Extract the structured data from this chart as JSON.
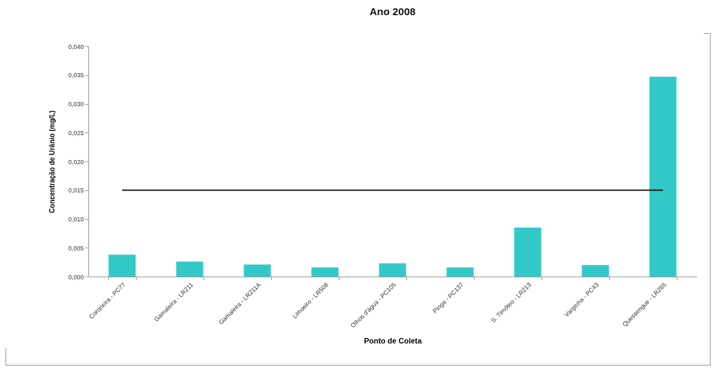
{
  "chart_data": {
    "type": "bar",
    "title": "Ano 2008",
    "xlabel": "Ponto de Coleta",
    "ylabel": "Concentração de Urânio (mg/L)",
    "categories": [
      "Coroneira - PC77",
      "Gamaleira - LR211",
      "Gamaleira - LR211A",
      "Limoeiro - LR508",
      "Olhos d'água - PC105",
      "Pinga - PC137",
      "S. Timóteo - LR213",
      "Varginha - PC43",
      "Quessengue - LR265"
    ],
    "values": [
      0.0038,
      0.0026,
      0.0021,
      0.0016,
      0.0023,
      0.0016,
      0.0085,
      0.002,
      0.0347
    ],
    "color": "#33c9c9",
    "ylim": [
      0,
      0.04
    ],
    "yticks": [
      {
        "value": 0,
        "label": "0,000"
      },
      {
        "value": 0.005,
        "label": "0,005"
      },
      {
        "value": 0.01,
        "label": "0,010"
      },
      {
        "value": 0.015,
        "label": "0,015"
      },
      {
        "value": 0.02,
        "label": "0,020"
      },
      {
        "value": 0.025,
        "label": "0,025"
      },
      {
        "value": 0.03,
        "label": "0,030"
      },
      {
        "value": 0.035,
        "label": "0,035"
      },
      {
        "value": 0.04,
        "label": "0,040"
      }
    ],
    "ref_lines": [
      {
        "axis": "y",
        "value": 0.015,
        "color": "#222222"
      }
    ],
    "grid": false
  }
}
